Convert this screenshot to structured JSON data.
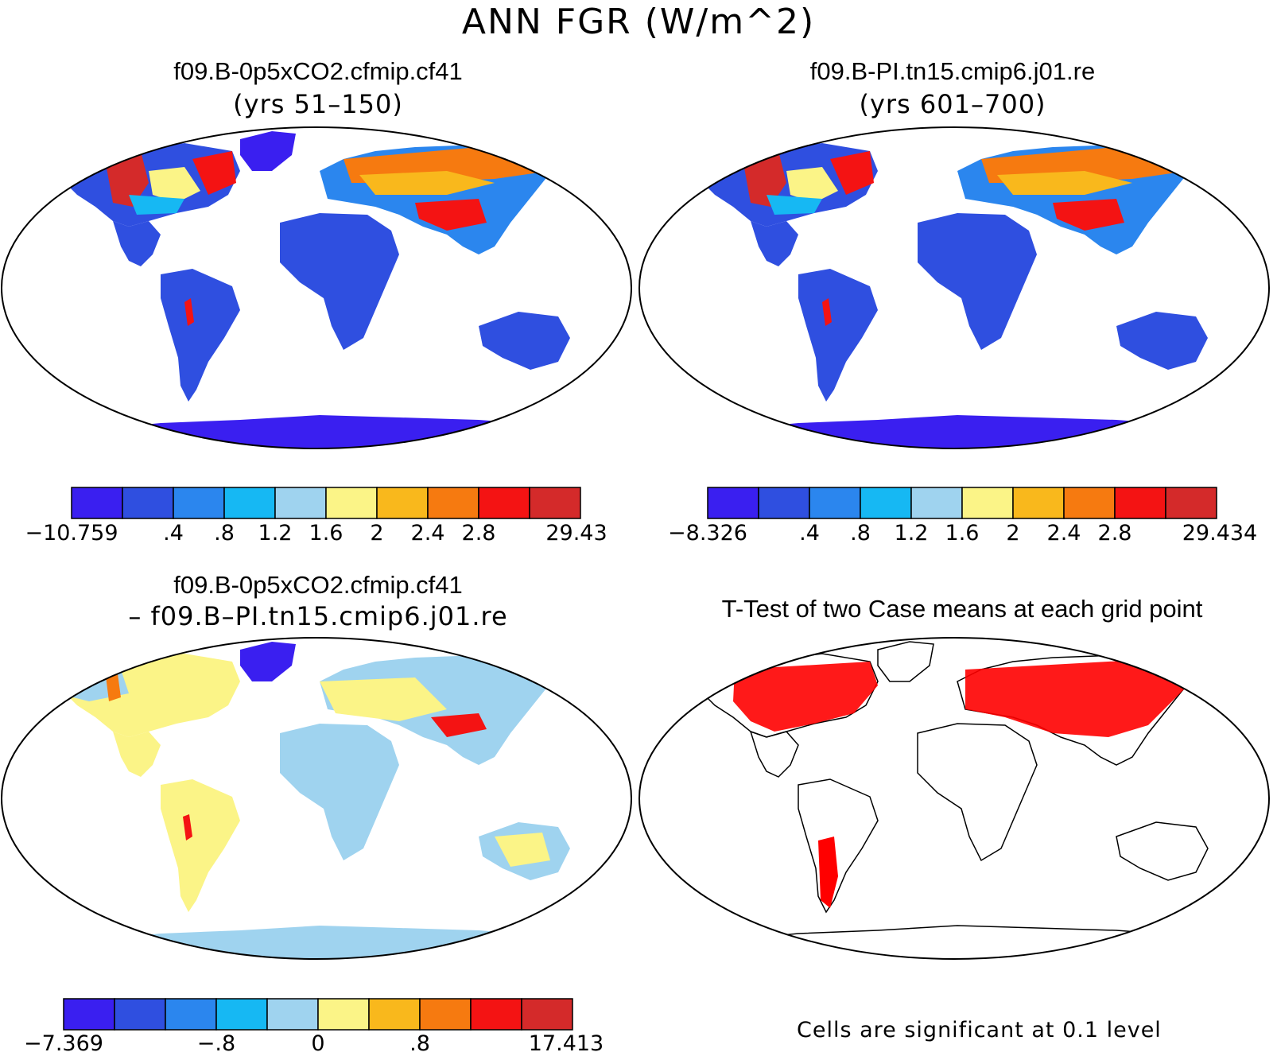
{
  "title": "ANN FGR (W/m^2)",
  "panels": [
    {
      "title": "f09.B-0p5xCO2.cfmip.cf41",
      "subtitle": "(yrs 51–150)"
    },
    {
      "title": "f09.B-PI.tn15.cmip6.j01.re",
      "subtitle": "(yrs 601–700)"
    },
    {
      "title": "f09.B-0p5xCO2.cfmip.cf41",
      "subtitle": "– f09.B–PI.tn15.cmip6.j01.re"
    },
    {
      "title": "T-Test of two Case means at each grid point",
      "subtitle": ""
    }
  ],
  "colorbars": [
    {
      "labels": [
        "−10.759",
        ".4",
        ".8",
        "1.2",
        "1.6",
        "2",
        "2.4",
        "2.8",
        "29.43"
      ]
    },
    {
      "labels": [
        "−8.326",
        ".4",
        ".8",
        "1.2",
        "1.6",
        "2",
        "2.4",
        "2.8",
        "29.434"
      ]
    },
    {
      "labels": [
        "−7.369",
        "−.8",
        "0",
        ".8",
        "17.413"
      ]
    }
  ],
  "colors": [
    "#3a1ff0",
    "#2f4fe0",
    "#2b86ee",
    "#16b8f3",
    "#9fd3ef",
    "#fbf487",
    "#f9b81c",
    "#f67a10",
    "#f41313",
    "#d42a2a"
  ],
  "significance_color": "#ff0000",
  "note": "Cells are significant at 0.1 level"
}
